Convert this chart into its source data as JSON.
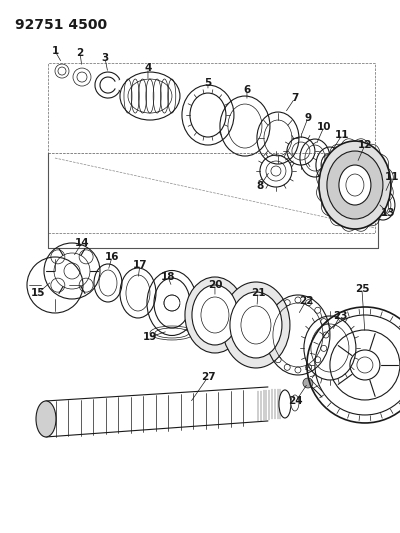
{
  "title": "92751 4500",
  "bg_color": "#ffffff",
  "line_color": "#1a1a1a",
  "title_fontsize": 10,
  "label_fontsize": 7.5,
  "fig_w": 4.0,
  "fig_h": 5.33,
  "dpi": 100,
  "xlim": [
    0,
    400
  ],
  "ylim": [
    0,
    533
  ]
}
